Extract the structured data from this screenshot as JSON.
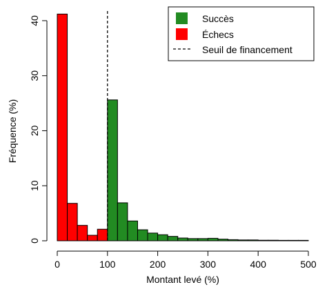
{
  "chart_data": {
    "type": "histogram",
    "xlabel": "Montant levé (%)",
    "ylabel": "Fréquence (%)",
    "xlim": [
      0,
      500
    ],
    "ylim": [
      0,
      42
    ],
    "xticks": [
      "0",
      "100",
      "200",
      "300",
      "400",
      "500"
    ],
    "yticks": [
      "0",
      "10",
      "20",
      "30",
      "40"
    ],
    "bin_width": 20,
    "grid": false,
    "legend_position": "top-right",
    "threshold_x": 100,
    "series": [
      {
        "name": "Succès",
        "color": "#228b22",
        "bins": [
          {
            "x0": 100,
            "x1": 120,
            "value": 25.6
          },
          {
            "x0": 120,
            "x1": 140,
            "value": 6.9
          },
          {
            "x0": 140,
            "x1": 160,
            "value": 3.6
          },
          {
            "x0": 160,
            "x1": 180,
            "value": 2.0
          },
          {
            "x0": 180,
            "x1": 200,
            "value": 1.4
          },
          {
            "x0": 200,
            "x1": 220,
            "value": 1.1
          },
          {
            "x0": 220,
            "x1": 240,
            "value": 0.8
          },
          {
            "x0": 240,
            "x1": 260,
            "value": 0.5
          },
          {
            "x0": 260,
            "x1": 280,
            "value": 0.4
          },
          {
            "x0": 280,
            "x1": 300,
            "value": 0.4
          },
          {
            "x0": 300,
            "x1": 320,
            "value": 0.45
          },
          {
            "x0": 320,
            "x1": 340,
            "value": 0.3
          },
          {
            "x0": 340,
            "x1": 360,
            "value": 0.2
          },
          {
            "x0": 360,
            "x1": 380,
            "value": 0.15
          },
          {
            "x0": 380,
            "x1": 400,
            "value": 0.15
          },
          {
            "x0": 400,
            "x1": 420,
            "value": 0.1
          },
          {
            "x0": 420,
            "x1": 440,
            "value": 0.1
          },
          {
            "x0": 440,
            "x1": 460,
            "value": 0.08
          },
          {
            "x0": 460,
            "x1": 480,
            "value": 0.08
          },
          {
            "x0": 480,
            "x1": 500,
            "value": 0.08
          }
        ]
      },
      {
        "name": "Échecs",
        "color": "#ff0000",
        "bins": [
          {
            "x0": 0,
            "x1": 20,
            "value": 41.2
          },
          {
            "x0": 20,
            "x1": 40,
            "value": 6.8
          },
          {
            "x0": 40,
            "x1": 60,
            "value": 2.8
          },
          {
            "x0": 60,
            "x1": 80,
            "value": 1.0
          },
          {
            "x0": 80,
            "x1": 100,
            "value": 2.1
          }
        ]
      }
    ],
    "legend": {
      "entries": [
        "Succès",
        "Échecs",
        "Seuil de financement"
      ]
    }
  }
}
